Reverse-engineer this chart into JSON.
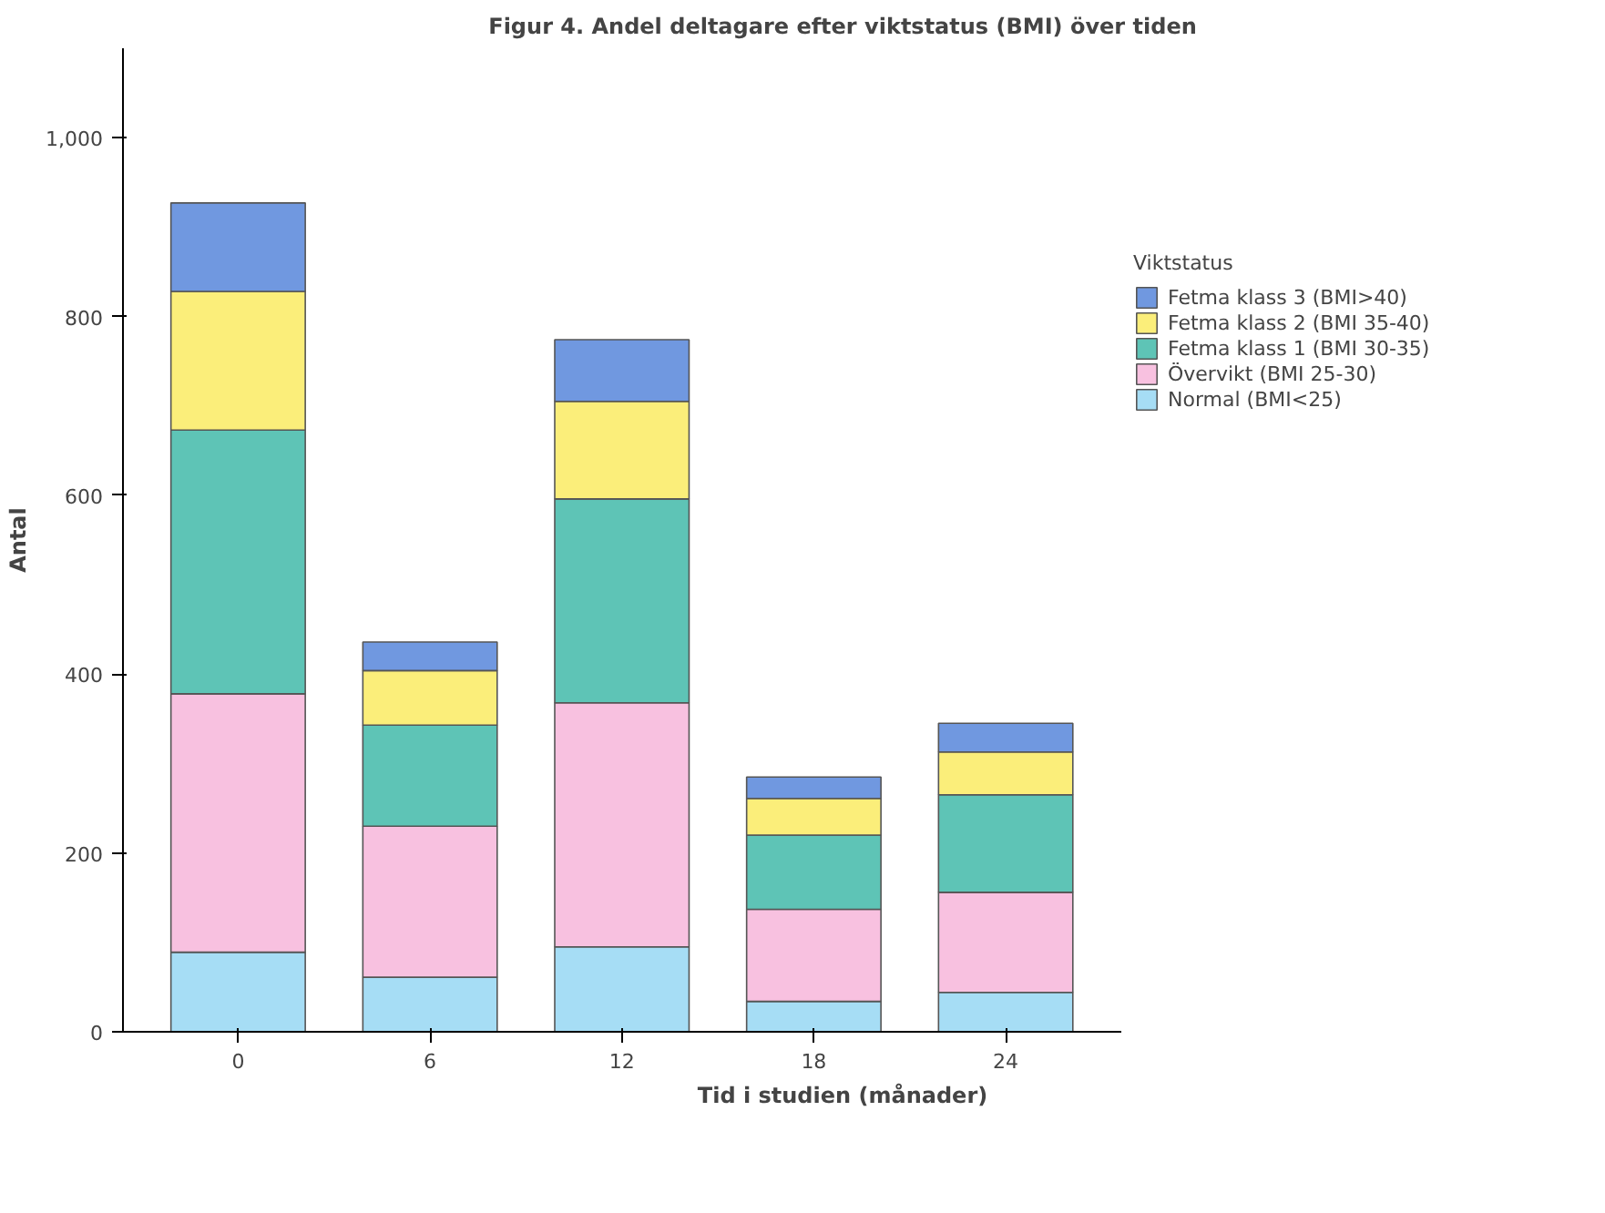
{
  "chart_data": {
    "type": "bar",
    "title": "Figur 4. Andel deltagare efter viktstatus (BMI) över tiden",
    "xlabel": "Tid i studien (månader)",
    "ylabel": "Antal",
    "legend_title": "Viktstatus",
    "categories": [
      "0",
      "6",
      "12",
      "18",
      "24"
    ],
    "stacked": true,
    "ylim": [
      0,
      1100
    ],
    "yticks": [
      0,
      200,
      400,
      600,
      800,
      {
        "value": 1000,
        "label": "1,000"
      }
    ],
    "grid": false,
    "legend": "right",
    "series": [
      {
        "name": "Normal (BMI<25)",
        "color": "#a6ddf5",
        "values": [
          89,
          61,
          95,
          34,
          44
        ]
      },
      {
        "name": "Övervikt (BMI 25-30)",
        "color": "#f8c1e0",
        "values": [
          289,
          169,
          273,
          103,
          112
        ]
      },
      {
        "name": "Fetma klass 1 (BMI 30-35)",
        "color": "#5ec4b6",
        "values": [
          295,
          113,
          228,
          83,
          109
        ]
      },
      {
        "name": "Fetma klass 2 (BMI 35-40)",
        "color": "#fbee7a",
        "values": [
          155,
          61,
          109,
          41,
          48
        ]
      },
      {
        "name": "Fetma klass 3 (BMI>40)",
        "color": "#7098e0",
        "values": [
          99,
          32,
          69,
          24,
          32
        ]
      }
    ]
  }
}
